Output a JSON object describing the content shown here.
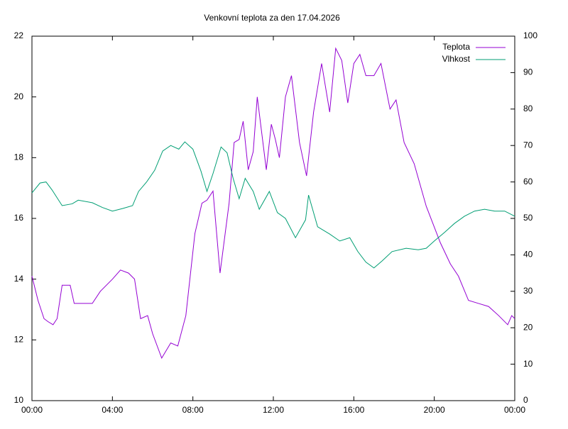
{
  "chart_data": {
    "type": "line",
    "title": "Venkovní teplota za den 17.04.2026",
    "xlim": [
      0,
      24
    ],
    "xticks": [
      {
        "value": 0,
        "label": "00:00"
      },
      {
        "value": 4,
        "label": "04:00"
      },
      {
        "value": 8,
        "label": "08:00"
      },
      {
        "value": 12,
        "label": "12:00"
      },
      {
        "value": 16,
        "label": "16:00"
      },
      {
        "value": 20,
        "label": "20:00"
      },
      {
        "value": 24,
        "label": "00:00"
      }
    ],
    "ylim": [
      10,
      22
    ],
    "yticks": [
      10,
      12,
      14,
      16,
      18,
      20,
      22
    ],
    "y2lim": [
      0,
      100
    ],
    "y2ticks": [
      0,
      10,
      20,
      30,
      40,
      50,
      60,
      70,
      80,
      90,
      100
    ],
    "legend": "top-right",
    "series": [
      {
        "name": "Teplota",
        "color": "#9400d3",
        "x": [
          0,
          0.3,
          0.6,
          0.8,
          1.05,
          1.25,
          1.5,
          1.9,
          2.1,
          3.0,
          3.4,
          4.0,
          4.4,
          4.8,
          5.1,
          5.4,
          5.75,
          6.0,
          6.45,
          6.9,
          7.25,
          7.65,
          8.1,
          8.45,
          8.7,
          9.0,
          9.35,
          9.8,
          10.05,
          10.3,
          10.5,
          10.75,
          11.0,
          11.2,
          11.65,
          11.9,
          12.1,
          12.3,
          12.6,
          12.9,
          13.3,
          13.65,
          14.0,
          14.4,
          14.8,
          15.1,
          15.4,
          15.7,
          16.0,
          16.3,
          16.6,
          17.0,
          17.35,
          17.8,
          18.1,
          18.5,
          19.0,
          19.6,
          20.3,
          20.8,
          21.2,
          21.7,
          22.2,
          22.7,
          23.2,
          23.65,
          23.85,
          24.0
        ],
        "values": [
          14.1,
          13.3,
          12.7,
          12.6,
          12.5,
          12.7,
          13.8,
          13.8,
          13.2,
          13.2,
          13.6,
          14.0,
          14.3,
          14.2,
          14.0,
          12.7,
          12.8,
          12.2,
          11.4,
          11.9,
          11.8,
          12.8,
          15.5,
          16.5,
          16.6,
          16.9,
          14.2,
          16.5,
          18.5,
          18.6,
          19.2,
          17.6,
          18.2,
          20.0,
          17.6,
          19.1,
          18.6,
          18.0,
          20.0,
          20.7,
          18.5,
          17.4,
          19.5,
          21.1,
          19.5,
          21.6,
          21.2,
          19.8,
          21.1,
          21.4,
          20.7,
          20.7,
          21.1,
          19.6,
          19.9,
          18.5,
          17.8,
          16.4,
          15.2,
          14.5,
          14.1,
          13.3,
          13.2,
          13.1,
          12.8,
          12.5,
          12.8,
          12.7
        ]
      },
      {
        "name": "Vlhkost",
        "color": "#009e73",
        "axis": "y2",
        "x": [
          0,
          0.4,
          0.7,
          1.0,
          1.5,
          2.0,
          2.3,
          3.0,
          3.5,
          4.0,
          4.5,
          5.0,
          5.3,
          5.7,
          6.1,
          6.5,
          6.9,
          7.3,
          7.6,
          8.0,
          8.4,
          8.7,
          9.0,
          9.4,
          9.7,
          10.0,
          10.3,
          10.6,
          11.0,
          11.3,
          11.8,
          12.2,
          12.6,
          13.1,
          13.6,
          13.75,
          14.2,
          14.8,
          15.3,
          15.8,
          16.2,
          16.6,
          17.0,
          17.4,
          17.9,
          18.6,
          19.2,
          19.6,
          20.0,
          20.5,
          21.0,
          21.5,
          22.0,
          22.5,
          23.0,
          23.5,
          24.0
        ],
        "values": [
          57,
          59.7,
          60,
          57.8,
          53.5,
          54,
          55,
          54.3,
          53,
          52,
          52.7,
          53.5,
          57.4,
          60,
          63.2,
          68.5,
          70,
          69,
          71,
          69,
          63,
          57.4,
          62.3,
          69.6,
          68,
          61,
          55.4,
          61,
          57.4,
          52.5,
          57.4,
          51.6,
          50,
          44.7,
          49.6,
          56.4,
          47.7,
          45.7,
          43.8,
          44.7,
          40.9,
          38,
          36.4,
          38.3,
          40.9,
          41.8,
          41.4,
          41.8,
          43.8,
          46.1,
          48.6,
          50.6,
          52,
          52.5,
          52,
          52,
          50.6
        ]
      }
    ]
  }
}
